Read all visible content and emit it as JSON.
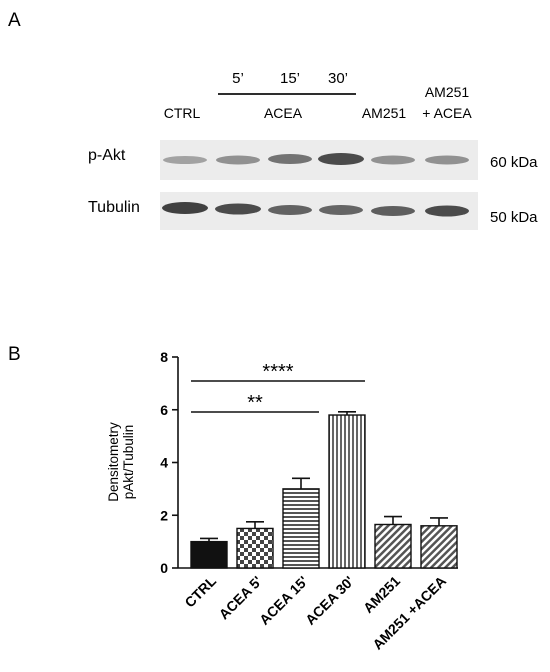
{
  "panel_a": {
    "label": "A",
    "timepoints": [
      "5’",
      "15’",
      "30’"
    ],
    "lanes": [
      "CTRL",
      "ACEA",
      "AM251",
      "AM251",
      "+ ACEA"
    ],
    "rows": [
      {
        "name": "p-Akt",
        "size": "60 kDa"
      },
      {
        "name": "Tubulin",
        "size": "50 kDa"
      }
    ]
  },
  "panel_b": {
    "label": "B"
  },
  "chart_data": {
    "type": "bar",
    "categories": [
      "CTRL",
      "ACEA 5'",
      "ACEA 15'",
      "ACEA 30'",
      "AM251",
      "AM251 +ACEA"
    ],
    "values": [
      1.0,
      1.5,
      3.0,
      5.8,
      1.65,
      1.6
    ],
    "errors": [
      0.12,
      0.25,
      0.4,
      0.12,
      0.3,
      0.3
    ],
    "fills": [
      "solid-black",
      "checker",
      "horizontal-stripes",
      "vertical-stripes",
      "diagonal-stripes",
      "diagonal-stripes"
    ],
    "ylabel": [
      "Densitometry",
      "pAkt/Tubulin"
    ],
    "ylim": [
      0,
      8
    ],
    "yticks": [
      0,
      2,
      4,
      6,
      8
    ],
    "significance": [
      {
        "from": "CTRL",
        "to": "ACEA 30'",
        "label": "****"
      },
      {
        "from": "CTRL",
        "to": "ACEA 15'",
        "label": "**"
      }
    ]
  }
}
